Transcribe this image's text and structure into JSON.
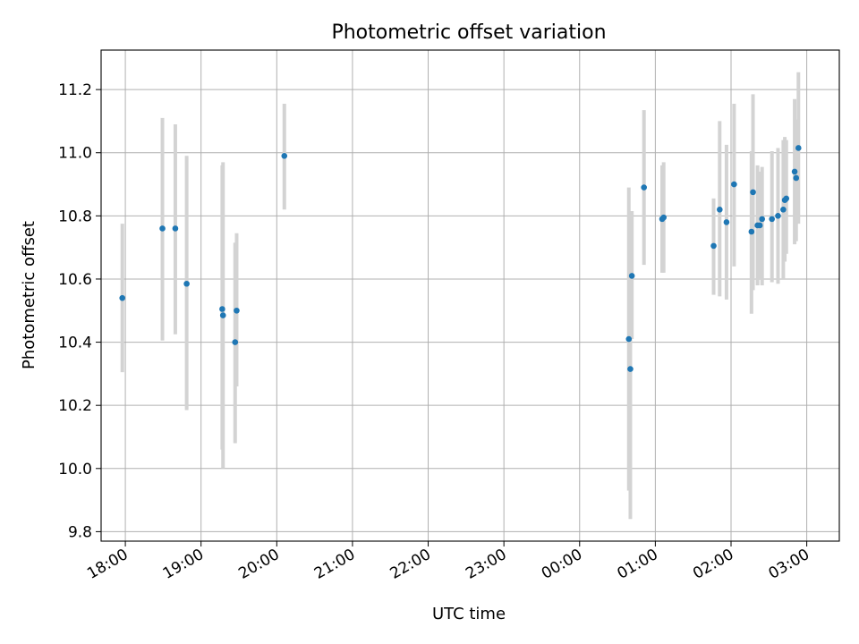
{
  "chart_data": {
    "type": "scatter",
    "title": "Photometric offset variation",
    "xlabel": "UTC time",
    "ylabel": "Photometric offset",
    "x_unit": "hours since 18:00 UTC",
    "xlim": [
      -0.32,
      9.43
    ],
    "ylim": [
      9.77,
      11.325
    ],
    "grid": true,
    "x_ticks": [
      {
        "value": 0,
        "label": "18:00"
      },
      {
        "value": 1,
        "label": "19:00"
      },
      {
        "value": 2,
        "label": "20:00"
      },
      {
        "value": 3,
        "label": "21:00"
      },
      {
        "value": 4,
        "label": "22:00"
      },
      {
        "value": 5,
        "label": "23:00"
      },
      {
        "value": 6,
        "label": "00:00"
      },
      {
        "value": 7,
        "label": "01:00"
      },
      {
        "value": 8,
        "label": "02:00"
      },
      {
        "value": 9,
        "label": "03:00"
      }
    ],
    "y_ticks": [
      {
        "value": 9.8,
        "label": "9.8"
      },
      {
        "value": 10.0,
        "label": "10.0"
      },
      {
        "value": 10.2,
        "label": "10.2"
      },
      {
        "value": 10.4,
        "label": "10.4"
      },
      {
        "value": 10.6,
        "label": "10.6"
      },
      {
        "value": 10.8,
        "label": "10.8"
      },
      {
        "value": 11.0,
        "label": "11.0"
      },
      {
        "value": 11.2,
        "label": "11.2"
      }
    ],
    "colors": {
      "points": "#1f77b4",
      "errorbars": "#d3d3d3",
      "grid": "#b0b0b0",
      "axes": "#000000"
    },
    "points": [
      {
        "x": -0.04,
        "y": 10.54,
        "err_low": 10.305,
        "err_high": 10.775
      },
      {
        "x": 0.49,
        "y": 10.76,
        "err_low": 10.405,
        "err_high": 11.11
      },
      {
        "x": 0.66,
        "y": 10.76,
        "err_low": 10.425,
        "err_high": 11.09
      },
      {
        "x": 0.81,
        "y": 10.585,
        "err_low": 10.185,
        "err_high": 10.99
      },
      {
        "x": 1.28,
        "y": 10.505,
        "err_low": 10.06,
        "err_high": 10.96
      },
      {
        "x": 1.29,
        "y": 10.485,
        "err_low": 10.0,
        "err_high": 10.97
      },
      {
        "x": 1.45,
        "y": 10.4,
        "err_low": 10.08,
        "err_high": 10.715
      },
      {
        "x": 1.47,
        "y": 10.5,
        "err_low": 10.26,
        "err_high": 10.745
      },
      {
        "x": 2.1,
        "y": 10.99,
        "err_low": 10.82,
        "err_high": 11.155
      },
      {
        "x": 6.65,
        "y": 10.41,
        "err_low": 9.93,
        "err_high": 10.89
      },
      {
        "x": 6.67,
        "y": 10.315,
        "err_low": 9.84,
        "err_high": 10.79
      },
      {
        "x": 6.69,
        "y": 10.61,
        "err_low": 10.41,
        "err_high": 10.815
      },
      {
        "x": 6.85,
        "y": 10.89,
        "err_low": 10.645,
        "err_high": 11.135
      },
      {
        "x": 7.09,
        "y": 10.79,
        "err_low": 10.62,
        "err_high": 10.96
      },
      {
        "x": 7.11,
        "y": 10.795,
        "err_low": 10.62,
        "err_high": 10.97
      },
      {
        "x": 7.77,
        "y": 10.705,
        "err_low": 10.55,
        "err_high": 10.855
      },
      {
        "x": 7.85,
        "y": 10.82,
        "err_low": 10.545,
        "err_high": 11.1
      },
      {
        "x": 7.94,
        "y": 10.78,
        "err_low": 10.535,
        "err_high": 11.025
      },
      {
        "x": 8.04,
        "y": 10.9,
        "err_low": 10.64,
        "err_high": 11.155
      },
      {
        "x": 8.27,
        "y": 10.75,
        "err_low": 10.49,
        "err_high": 11.005
      },
      {
        "x": 8.29,
        "y": 10.875,
        "err_low": 10.565,
        "err_high": 11.185
      },
      {
        "x": 8.35,
        "y": 10.77,
        "err_low": 10.58,
        "err_high": 10.96
      },
      {
        "x": 8.38,
        "y": 10.77,
        "err_low": 10.6,
        "err_high": 10.94
      },
      {
        "x": 8.41,
        "y": 10.79,
        "err_low": 10.58,
        "err_high": 10.955
      },
      {
        "x": 8.54,
        "y": 10.79,
        "err_low": 10.59,
        "err_high": 11.005
      },
      {
        "x": 8.62,
        "y": 10.8,
        "err_low": 10.585,
        "err_high": 11.015
      },
      {
        "x": 8.69,
        "y": 10.82,
        "err_low": 10.6,
        "err_high": 11.04
      },
      {
        "x": 8.71,
        "y": 10.85,
        "err_low": 10.655,
        "err_high": 11.05
      },
      {
        "x": 8.73,
        "y": 10.855,
        "err_low": 10.68,
        "err_high": 11.04
      },
      {
        "x": 8.84,
        "y": 10.94,
        "err_low": 10.71,
        "err_high": 11.17
      },
      {
        "x": 8.86,
        "y": 10.92,
        "err_low": 10.72,
        "err_high": 11.105
      },
      {
        "x": 8.89,
        "y": 11.015,
        "err_low": 10.775,
        "err_high": 11.255
      }
    ]
  }
}
